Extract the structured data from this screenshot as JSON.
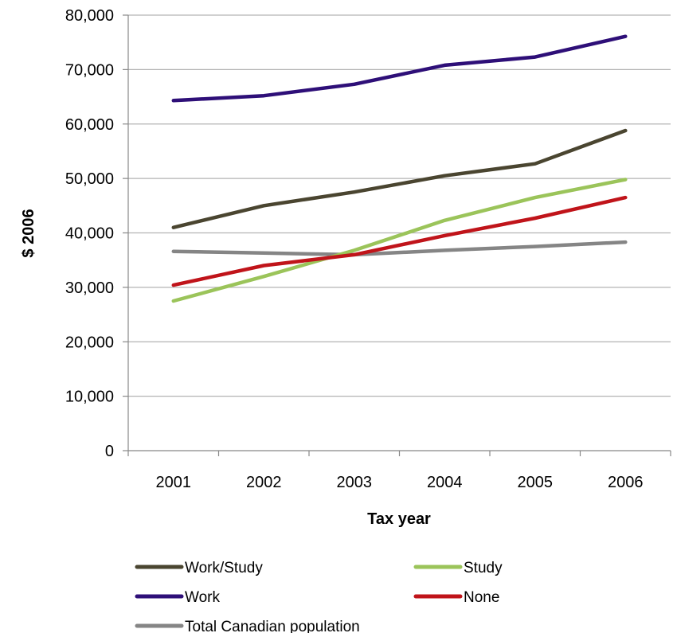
{
  "chart_data": {
    "type": "line",
    "title": "",
    "xlabel": "Tax year",
    "ylabel": "$ 2006",
    "categories": [
      "2001",
      "2002",
      "2003",
      "2004",
      "2005",
      "2006"
    ],
    "ylim": [
      0,
      80000
    ],
    "yticks": [
      0,
      10000,
      20000,
      30000,
      40000,
      50000,
      60000,
      70000,
      80000
    ],
    "ytick_labels": [
      "0",
      "10,000",
      "20,000",
      "30,000",
      "40,000",
      "50,000",
      "60,000",
      "70,000",
      "80,000"
    ],
    "grid": "horizontal",
    "legend_position": "bottom",
    "series": [
      {
        "name": "Work/Study",
        "color": "#4a4530",
        "values": [
          41000,
          45000,
          47500,
          50500,
          52700,
          58800
        ]
      },
      {
        "name": "Study",
        "color": "#9bc45a",
        "values": [
          27500,
          32000,
          36800,
          42300,
          46500,
          49800
        ]
      },
      {
        "name": "Work",
        "color": "#2e0f78",
        "values": [
          64300,
          65200,
          67300,
          70800,
          72300,
          76100
        ]
      },
      {
        "name": "None",
        "color": "#c0141a",
        "values": [
          30400,
          34000,
          36000,
          39500,
          42700,
          46500
        ]
      },
      {
        "name": "Total Canadian population",
        "color": "#858585",
        "values": [
          36600,
          36300,
          36000,
          36800,
          37500,
          38300
        ]
      }
    ]
  }
}
